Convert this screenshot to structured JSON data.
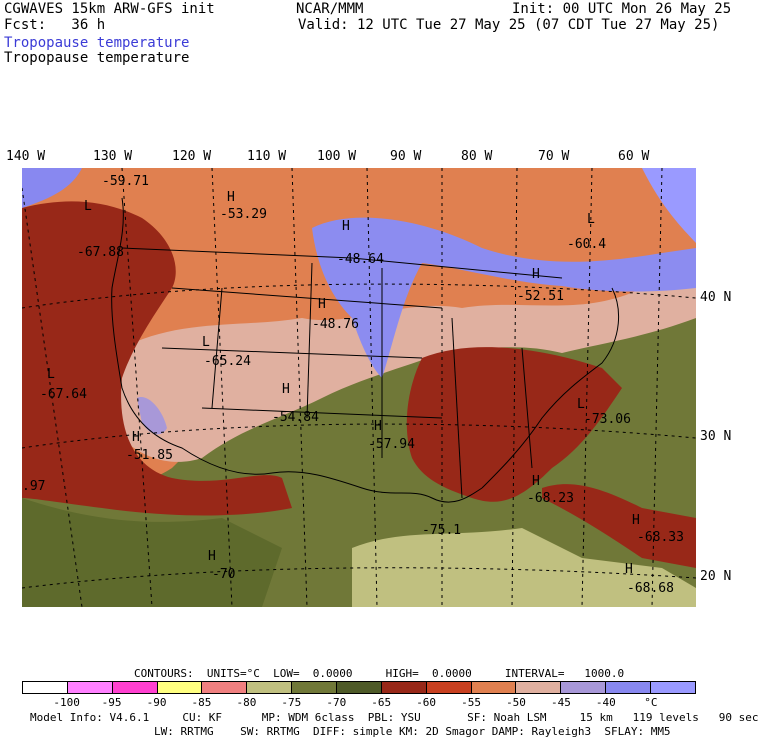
{
  "header": {
    "model": "CGWAVES 15km ARW-GFS init",
    "fcst": "Fcst:   36 h",
    "center": "NCAR/MMM",
    "init": "Init: 00 UTC Mon 26 May 25",
    "valid": "Valid: 12 UTC Tue 27 May 25 (07 CDT Tue 27 May 25)",
    "field_title_1": "Tropopause temperature",
    "field_title_2": "Tropopause temperature"
  },
  "colors": {
    "field_title_1": "#3b3bd6"
  },
  "lon_labels": [
    "140 W",
    "130 W",
    "120 W",
    "110 W",
    "100 W",
    "90 W",
    "80 W",
    "70 W",
    "60 W"
  ],
  "lat_labels": [
    "40 N",
    "30 N",
    "20 N"
  ],
  "map_labels": [
    {
      "text": "-59.71",
      "kind": "value"
    },
    {
      "text": "H",
      "kind": "symbol"
    },
    {
      "text": "-53.29",
      "kind": "value"
    },
    {
      "text": "L",
      "kind": "symbol"
    },
    {
      "text": "-67.88",
      "kind": "value"
    },
    {
      "text": "H",
      "kind": "symbol"
    },
    {
      "text": "-48.64",
      "kind": "value"
    },
    {
      "text": "L",
      "kind": "symbol"
    },
    {
      "text": "-60.4",
      "kind": "value"
    },
    {
      "text": "H",
      "kind": "symbol"
    },
    {
      "text": "-52.51",
      "kind": "value"
    },
    {
      "text": "H",
      "kind": "symbol"
    },
    {
      "text": "-48.76",
      "kind": "value"
    },
    {
      "text": "L",
      "kind": "symbol"
    },
    {
      "text": "-65.24",
      "kind": "value"
    },
    {
      "text": "L",
      "kind": "symbol"
    },
    {
      "text": "-67.64",
      "kind": "value"
    },
    {
      "text": "H",
      "kind": "symbol"
    },
    {
      "text": "-54.84",
      "kind": "value"
    },
    {
      "text": "H",
      "kind": "symbol"
    },
    {
      "text": "-57.94",
      "kind": "value"
    },
    {
      "text": "L",
      "kind": "symbol"
    },
    {
      "text": "-73.06",
      "kind": "value"
    },
    {
      "text": "H",
      "kind": "symbol"
    },
    {
      "text": "-51.85",
      "kind": "value"
    },
    {
      "text": ".97",
      "kind": "value"
    },
    {
      "text": "H",
      "kind": "symbol"
    },
    {
      "text": "-68.23",
      "kind": "value"
    },
    {
      "text": "-75.1",
      "kind": "value"
    },
    {
      "text": "H",
      "kind": "symbol"
    },
    {
      "text": "-68.33",
      "kind": "value"
    },
    {
      "text": "H",
      "kind": "symbol"
    },
    {
      "text": "-70",
      "kind": "value"
    },
    {
      "text": "H",
      "kind": "symbol"
    },
    {
      "text": "-68.68",
      "kind": "value"
    }
  ],
  "contours_line": "CONTOURS:  UNITS=°C  LOW=  0.0000     HIGH=  0.0000     INTERVAL=   1000.0",
  "colorbar": {
    "colors": [
      "#ffffff",
      "#ff80ff",
      "#ff40d0",
      "#ffff80",
      "#f08080",
      "#c0c080",
      "#707838",
      "#4e5a28",
      "#982818",
      "#c84020",
      "#e08050",
      "#e0b0a0",
      "#a898d8",
      "#8888f0",
      "#9a9aff"
    ],
    "labels": [
      "-100",
      "-95",
      "-90",
      "-85",
      "-80",
      "-75",
      "-70",
      "-65",
      "-60",
      "-55",
      "-50",
      "-45",
      "-40",
      "°C"
    ]
  },
  "footer": {
    "line1": "Model Info: V4.6.1     CU: KF      MP: WDM 6class  PBL: YSU       SF: Noah LSM     15 km   119 levels   90 sec",
    "line2": "LW: RRTMG    SW: RRTMG  DIFF: simple KM: 2D Smagor DAMP: Rayleigh3  SFLAY: MM5"
  }
}
